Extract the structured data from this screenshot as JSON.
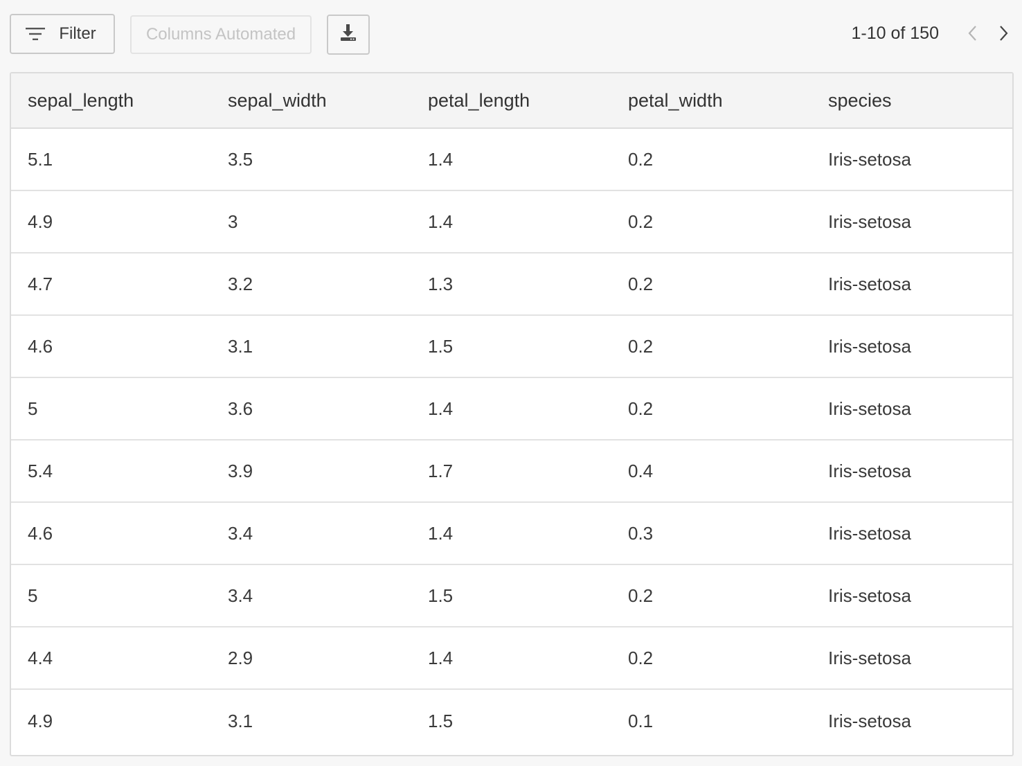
{
  "toolbar": {
    "filter_label": "Filter",
    "columns_label": "Columns Automated",
    "download_icon": "download-icon",
    "filter_icon": "filter-lines-icon"
  },
  "pagination": {
    "text": "1-10 of 150",
    "prev_icon": "chevron-left-icon",
    "next_icon": "chevron-right-icon"
  },
  "table": {
    "columns": [
      "sepal_length",
      "sepal_width",
      "petal_length",
      "petal_width",
      "species"
    ],
    "rows": [
      [
        "5.1",
        "3.5",
        "1.4",
        "0.2",
        "Iris-setosa"
      ],
      [
        "4.9",
        "3",
        "1.4",
        "0.2",
        "Iris-setosa"
      ],
      [
        "4.7",
        "3.2",
        "1.3",
        "0.2",
        "Iris-setosa"
      ],
      [
        "4.6",
        "3.1",
        "1.5",
        "0.2",
        "Iris-setosa"
      ],
      [
        "5",
        "3.6",
        "1.4",
        "0.2",
        "Iris-setosa"
      ],
      [
        "5.4",
        "3.9",
        "1.7",
        "0.4",
        "Iris-setosa"
      ],
      [
        "4.6",
        "3.4",
        "1.4",
        "0.3",
        "Iris-setosa"
      ],
      [
        "5",
        "3.4",
        "1.5",
        "0.2",
        "Iris-setosa"
      ],
      [
        "4.4",
        "2.9",
        "1.4",
        "0.2",
        "Iris-setosa"
      ],
      [
        "4.9",
        "3.1",
        "1.5",
        "0.1",
        "Iris-setosa"
      ]
    ]
  }
}
